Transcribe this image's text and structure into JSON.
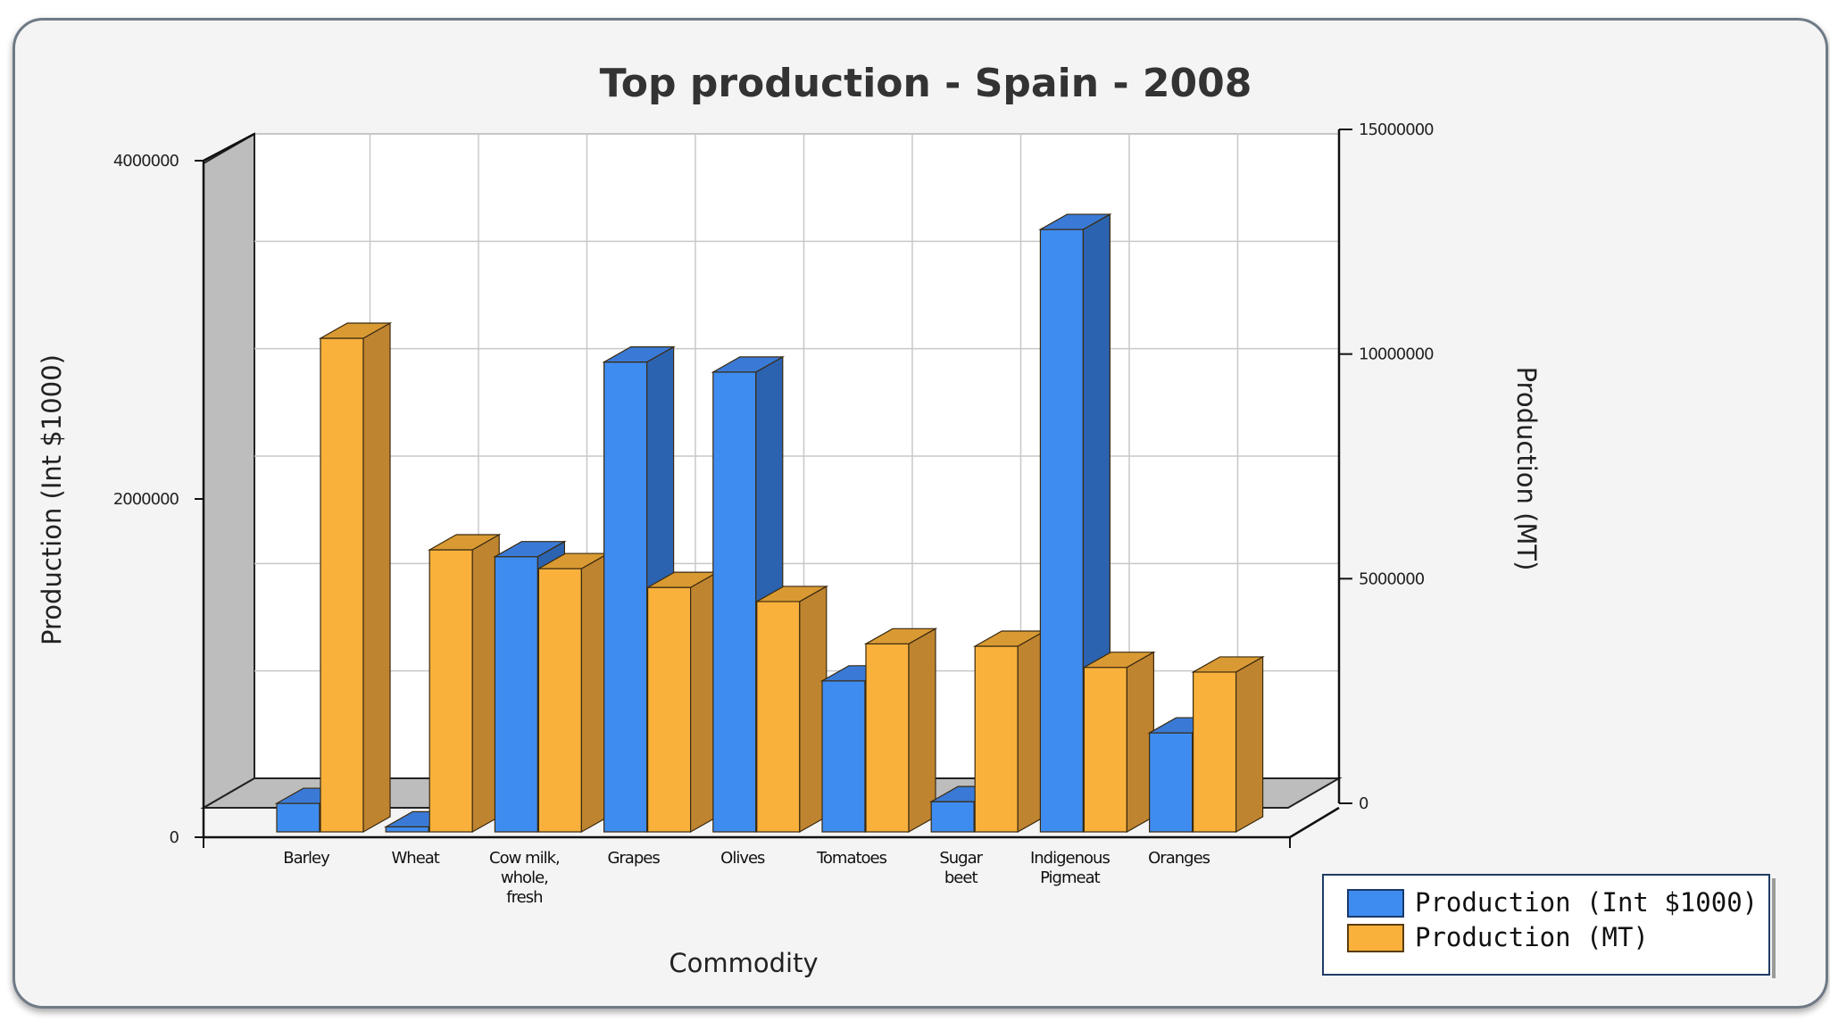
{
  "chart_data": {
    "type": "bar",
    "title": "Top production - Spain - 2008",
    "xlabel": "Commodity",
    "ylabel_left": "Production (Int $1000)",
    "ylabel_right": "Production (MT)",
    "categories": [
      "Barley",
      "Wheat",
      "Cow milk, whole, fresh",
      "Grapes",
      "Olives",
      "Tomatoes",
      "Sugar beet",
      "Indigenous Pigmeat",
      "Oranges"
    ],
    "category_lines": [
      [
        "Barley"
      ],
      [
        "Wheat"
      ],
      [
        "Cow milk,",
        "whole,",
        "fresh"
      ],
      [
        "Grapes"
      ],
      [
        "Olives"
      ],
      [
        "Tomatoes"
      ],
      [
        "Sugar",
        "beet"
      ],
      [
        "Indigenous",
        "Pigmeat"
      ],
      [
        "Oranges"
      ]
    ],
    "left_axis": {
      "min": 0,
      "max": 4000000,
      "ticks": [
        0,
        2000000,
        4000000
      ],
      "tick_labels": [
        "0",
        "2000000",
        "4000000"
      ]
    },
    "right_axis": {
      "min": 0,
      "max": 15000000,
      "ticks": [
        0,
        5000000,
        10000000,
        15000000
      ],
      "tick_labels": [
        "0",
        "5000000",
        "10000000",
        "15000000"
      ]
    },
    "series": [
      {
        "name": "Production (Int $1000)",
        "axis": "left",
        "color": "#3f8cf0",
        "side_color": "#2b63b0",
        "top_color": "#3a7ad6",
        "values": [
          170000,
          30000,
          1640000,
          2800000,
          2740000,
          900000,
          180000,
          3590000,
          590000
        ]
      },
      {
        "name": "Production (MT)",
        "axis": "right",
        "color": "#f9b13c",
        "side_color": "#bf8430",
        "top_color": "#d99a33",
        "values": [
          10500000,
          6000000,
          5600000,
          5200000,
          4900000,
          4000000,
          3950000,
          3500000,
          3400000
        ]
      }
    ],
    "grid": true,
    "view": "3d",
    "legend_position": "bottom-right"
  }
}
